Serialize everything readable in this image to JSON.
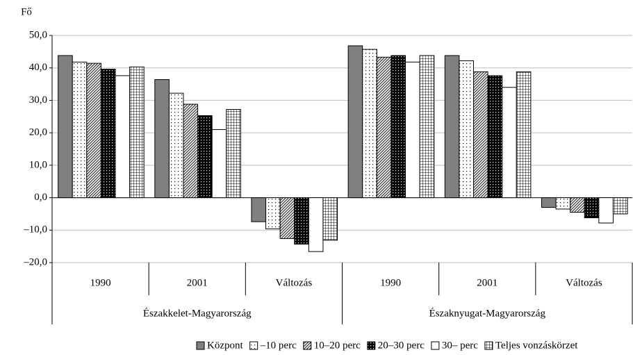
{
  "chart_data": {
    "type": "bar",
    "y_label": "Fő",
    "categories": [
      "1990",
      "2001",
      "Változás",
      "1990",
      "2001",
      "Változás"
    ],
    "regions": [
      "Északkelet-Magyarország",
      "Északnyugat-Magyarország"
    ],
    "series": [
      {
        "name": "Központ",
        "pattern": "solid",
        "color": "#808080",
        "values": [
          43.8,
          36.4,
          -7.4,
          46.8,
          43.8,
          -3.0
        ]
      },
      {
        "name": "–10 perc",
        "pattern": "dots",
        "color": "#000000",
        "values": [
          41.8,
          32.2,
          -9.6,
          45.7,
          42.2,
          -3.5
        ]
      },
      {
        "name": "10–20 perc",
        "pattern": "hatch",
        "color": "#000000",
        "values": [
          41.4,
          28.8,
          -12.6,
          43.3,
          38.8,
          -4.5
        ]
      },
      {
        "name": "20–30 perc",
        "pattern": "dense-dots",
        "color": "#000000",
        "values": [
          39.6,
          25.3,
          -14.3,
          43.8,
          37.6,
          -6.2
        ]
      },
      {
        "name": "30– perc",
        "pattern": "none",
        "color": "#ffffff",
        "values": [
          37.6,
          21.0,
          -16.6,
          41.8,
          34.0,
          -7.8
        ]
      },
      {
        "name": "Teljes vonzáskörzet",
        "pattern": "grid",
        "color": "#000000",
        "values": [
          40.3,
          27.2,
          -13.1,
          43.8,
          38.8,
          -5.0
        ]
      }
    ],
    "ylim": [
      -20,
      50
    ],
    "yticks": [
      {
        "value": -20,
        "label": "–20,0"
      },
      {
        "value": -10,
        "label": "–10,0"
      },
      {
        "value": 0,
        "label": "0,0"
      },
      {
        "value": 10,
        "label": "10,0"
      },
      {
        "value": 20,
        "label": "20,0"
      },
      {
        "value": 30,
        "label": "30,0"
      },
      {
        "value": 40,
        "label": "40,0"
      },
      {
        "value": 50,
        "label": "50,0"
      }
    ],
    "grid": true,
    "legend": "bottom"
  }
}
